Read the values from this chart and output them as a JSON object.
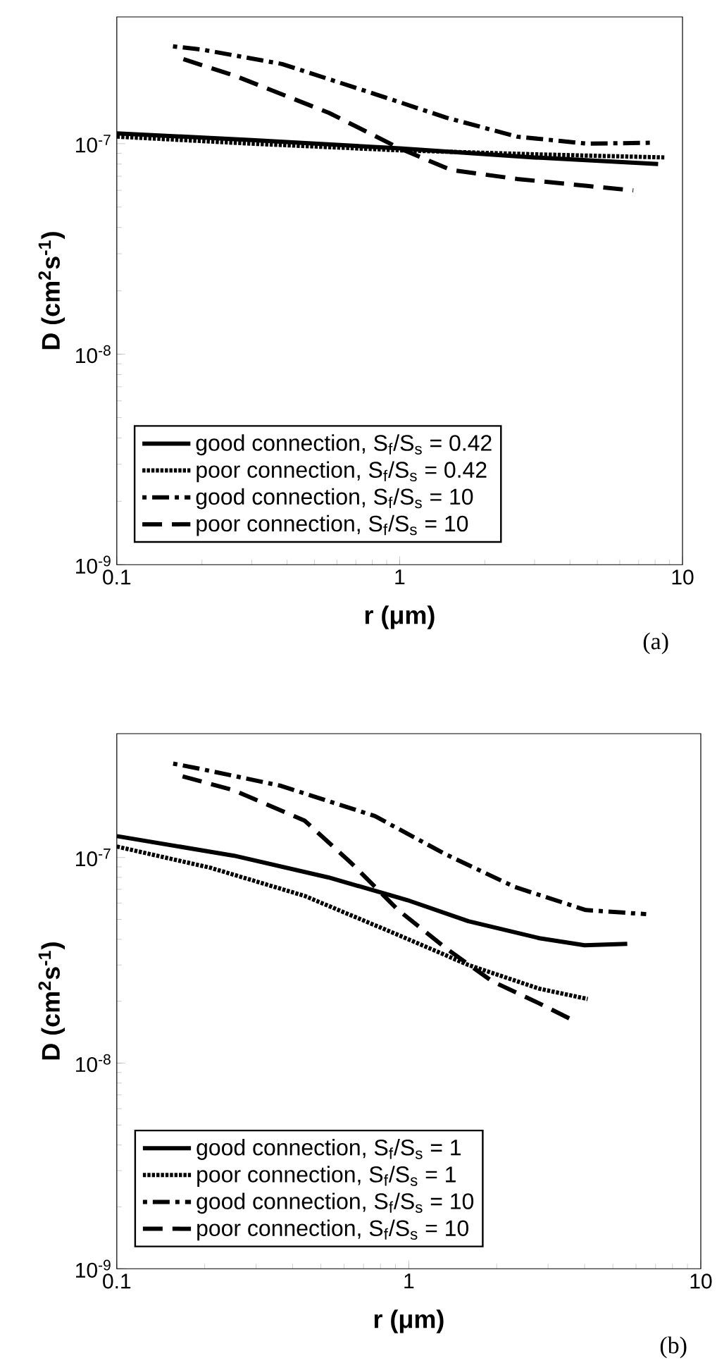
{
  "chart_data": [
    {
      "type": "line",
      "xlabel": "r (μm)",
      "ylabel": "D (cm$^{2}$s$^{-1}$)",
      "annotations": [
        "(a)"
      ],
      "log": "xy",
      "xlim": [
        0.1,
        10
      ],
      "ylim": [
        1e-09,
        4e-07
      ],
      "xticks": [
        0.1,
        1,
        10
      ],
      "yticks": [
        {
          "value": 1e-09,
          "label": "10$^{-9}$"
        },
        {
          "value": 1e-08,
          "label": "10$^{-8}$"
        },
        {
          "value": 1e-07,
          "label": "10$^{-7}$"
        }
      ],
      "legend": "bottom left",
      "grid": false,
      "series": [
        {
          "name": "good connection, S$_{f}$/S$_{s}$ = 0.42",
          "color": "#000000",
          "line_style": "solid",
          "x": [
            0.1,
            0.3,
            1,
            3,
            8.2
          ],
          "values": [
            1.12e-07,
            1.04e-07,
            9.5e-08,
            8.6e-08,
            8e-08
          ]
        },
        {
          "name": "poor connection, S$_{f}$/S$_{s}$ = 0.42",
          "color": "#000000",
          "line_style": "dotted",
          "x": [
            0.1,
            0.3,
            1,
            3,
            8.7
          ],
          "values": [
            1.08e-07,
            1e-07,
            9.3e-08,
            8.9e-08,
            8.6e-08
          ]
        },
        {
          "name": "good connection, S$_{f}$/S$_{s}$ = 10",
          "color": "#000000",
          "line_style": "dashdot",
          "x": [
            0.158,
            0.2,
            0.384,
            0.83,
            1.46,
            2.6,
            4.6,
            7.8
          ],
          "values": [
            2.9e-07,
            2.8e-07,
            2.39e-07,
            1.71e-07,
            1.33e-07,
            1.08e-07,
            1e-07,
            1.01e-07
          ]
        },
        {
          "name": "poor connection, S$_{f}$/S$_{s}$ = 10",
          "color": "#000000",
          "line_style": "dashed",
          "x": [
            0.172,
            0.262,
            0.563,
            1.0,
            1.52,
            2.6,
            4.6,
            6.7
          ],
          "values": [
            2.52e-07,
            2.1e-07,
            1.4e-07,
            9.5e-08,
            7.5e-08,
            6.8e-08,
            6.3e-08,
            6e-08
          ]
        }
      ]
    },
    {
      "type": "line",
      "xlabel": "r (μm)",
      "ylabel": "D (cm$^{2}$s$^{-1}$)",
      "annotations": [
        "(b)"
      ],
      "log": "xy",
      "xlim": [
        0.1,
        10
      ],
      "ylim": [
        1e-09,
        4e-07
      ],
      "xticks": [
        0.1,
        1,
        10
      ],
      "yticks": [
        {
          "value": 1e-09,
          "label": "10$^{-9}$"
        },
        {
          "value": 1e-08,
          "label": "10$^{-8}$"
        },
        {
          "value": 1e-07,
          "label": "10$^{-7}$"
        }
      ],
      "legend": "bottom left",
      "grid": false,
      "series": [
        {
          "name": "good connection, S$_{f}$/S$_{s}$ = 1",
          "color": "#000000",
          "line_style": "solid",
          "x": [
            0.1,
            0.252,
            0.53,
            0.99,
            1.6,
            2.8,
            4.0,
            5.6
          ],
          "values": [
            1.27e-07,
            1.02e-07,
            8e-08,
            6.2e-08,
            4.9e-08,
            4.05e-08,
            3.74e-08,
            3.8e-08
          ]
        },
        {
          "name": "poor connection, S$_{f}$/S$_{s}$ = 1",
          "color": "#000000",
          "line_style": "dotted",
          "x": [
            0.1,
            0.21,
            0.44,
            0.92,
            1.6,
            2.8,
            4.1
          ],
          "values": [
            1.13e-07,
            8.9e-08,
            6.5e-08,
            4.2e-08,
            3e-08,
            2.3e-08,
            2.05e-08
          ]
        },
        {
          "name": "good connection, S$_{f}$/S$_{s}$ = 10",
          "color": "#000000",
          "line_style": "dashdot",
          "x": [
            0.156,
            0.195,
            0.365,
            0.765,
            1.33,
            2.3,
            4.04,
            6.5
          ],
          "values": [
            2.86e-07,
            2.69e-07,
            2.23e-07,
            1.59e-07,
            1.04e-07,
            7.2e-08,
            5.55e-08,
            5.3e-08
          ]
        },
        {
          "name": "poor connection, S$_{f}$/S$_{s}$ = 10",
          "color": "#000000",
          "line_style": "dashed",
          "x": [
            0.168,
            0.252,
            0.44,
            0.635,
            0.92,
            1.33,
            1.93,
            2.8,
            3.7
          ],
          "values": [
            2.48e-07,
            2.12e-07,
            1.51e-07,
            9.4e-08,
            5.55e-08,
            3.65e-08,
            2.5e-08,
            1.95e-08,
            1.6e-08
          ]
        }
      ]
    }
  ]
}
